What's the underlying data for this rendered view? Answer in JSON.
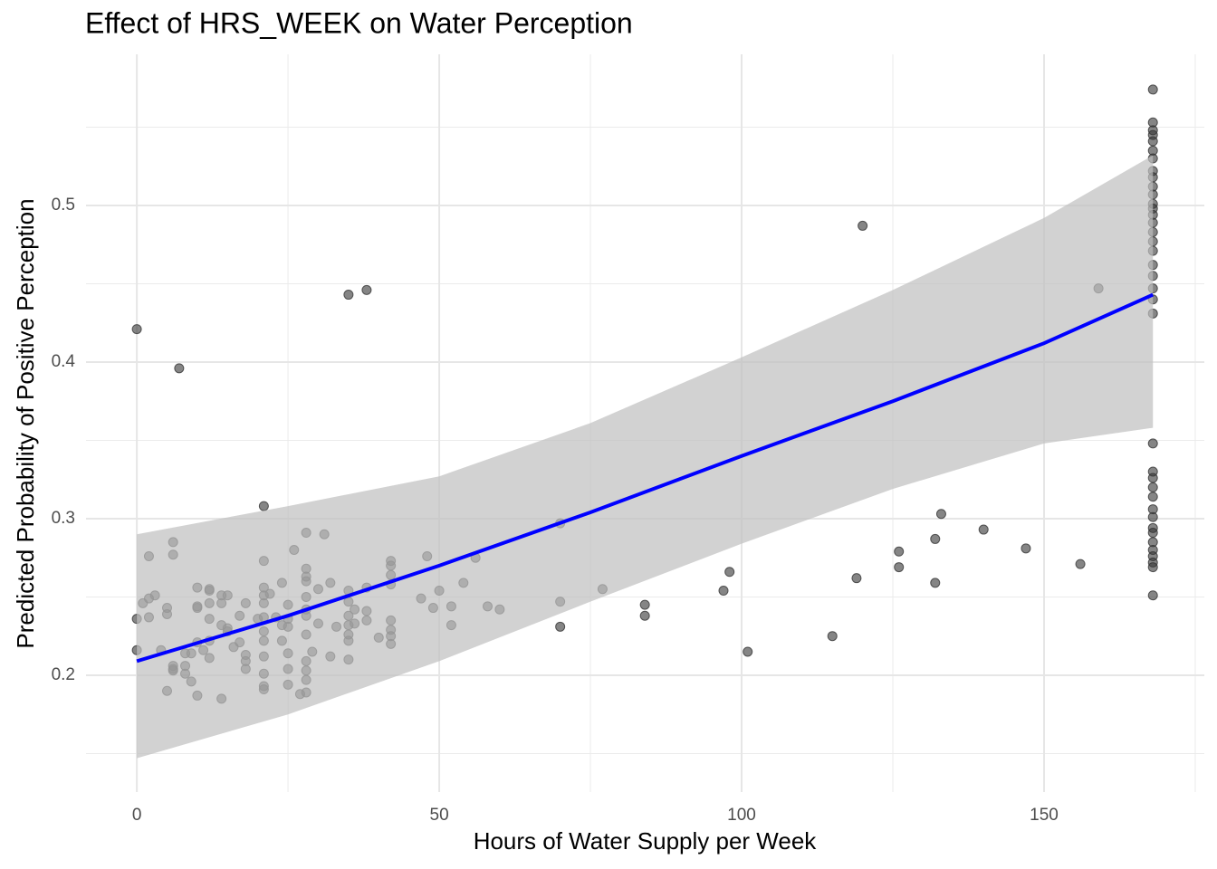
{
  "chart_data": {
    "type": "scatter",
    "title": "Effect of HRS_WEEK on Water Perception",
    "x_label": "Hours of Water Supply per Week",
    "y_label": "Predicted Probability of Positive Perception",
    "xlim": [
      -8.4,
      176.5
    ],
    "ylim": [
      0.1254,
      0.5965
    ],
    "xticks": [
      0,
      50,
      100,
      150
    ],
    "yticks": [
      0.2,
      0.3,
      0.4,
      0.5
    ],
    "minor_xticks": [
      25,
      75,
      125,
      175
    ],
    "minor_yticks": [
      0.15,
      0.25,
      0.35,
      0.45,
      0.55
    ],
    "grid": true,
    "band": {
      "color": "#bfbfbf",
      "x": [
        0,
        25,
        50,
        75,
        100,
        125,
        150,
        168
      ],
      "lower": [
        0.147,
        0.175,
        0.209,
        0.247,
        0.284,
        0.319,
        0.348,
        0.358
      ],
      "upper": [
        0.29,
        0.308,
        0.327,
        0.361,
        0.403,
        0.446,
        0.492,
        0.532
      ]
    },
    "fit": {
      "color": "#0000ff",
      "x": [
        0,
        25,
        50,
        75,
        100,
        125,
        150,
        168
      ],
      "values": [
        0.209,
        0.238,
        0.27,
        0.304,
        0.34,
        0.375,
        0.412,
        0.443
      ]
    },
    "points": {
      "color": "#333333",
      "x": [
        0,
        0,
        0,
        1,
        2,
        2,
        2,
        3,
        4,
        5,
        5,
        5,
        6,
        6,
        6,
        6,
        6,
        7,
        8,
        8,
        8,
        9,
        9,
        10,
        10,
        10,
        10,
        10,
        11,
        12,
        12,
        12,
        12,
        12,
        12,
        14,
        14,
        14,
        14,
        15,
        15,
        15,
        16,
        17,
        17,
        18,
        18,
        18,
        18,
        20,
        21,
        21,
        21,
        21,
        21,
        21,
        21,
        21,
        21,
        21,
        21,
        21,
        22,
        23,
        24,
        24,
        24,
        25,
        25,
        25,
        25,
        25,
        25,
        26,
        27,
        28,
        28,
        28,
        28,
        28,
        28,
        28,
        28,
        28,
        28,
        28,
        28,
        29,
        30,
        30,
        31,
        32,
        32,
        33,
        35,
        35,
        35,
        35,
        35,
        35,
        35,
        35,
        36,
        36,
        38,
        38,
        38,
        38,
        40,
        42,
        42,
        42,
        42,
        42,
        42,
        42,
        42,
        47,
        48,
        49,
        50,
        52,
        52,
        54,
        56,
        58,
        60,
        70,
        70,
        70,
        77,
        84,
        84,
        97,
        98,
        101,
        115,
        119,
        120,
        126,
        126,
        132,
        132,
        133,
        140,
        147,
        156,
        159,
        168,
        168,
        168,
        168,
        168,
        168,
        168,
        168,
        168,
        168,
        168,
        168,
        168,
        168,
        168,
        168,
        168,
        168,
        168,
        168,
        168,
        168,
        168,
        168,
        168,
        168,
        168,
        168,
        168,
        168,
        168,
        168,
        168,
        168,
        168,
        168,
        168,
        168
      ],
      "y": [
        0.421,
        0.236,
        0.216,
        0.246,
        0.237,
        0.276,
        0.249,
        0.251,
        0.216,
        0.243,
        0.239,
        0.19,
        0.285,
        0.277,
        0.206,
        0.203,
        0.204,
        0.396,
        0.214,
        0.206,
        0.201,
        0.196,
        0.214,
        0.243,
        0.256,
        0.244,
        0.221,
        0.187,
        0.216,
        0.255,
        0.246,
        0.254,
        0.211,
        0.222,
        0.236,
        0.251,
        0.246,
        0.232,
        0.185,
        0.23,
        0.228,
        0.251,
        0.218,
        0.221,
        0.238,
        0.246,
        0.213,
        0.209,
        0.204,
        0.236,
        0.308,
        0.273,
        0.256,
        0.251,
        0.246,
        0.237,
        0.228,
        0.222,
        0.212,
        0.201,
        0.193,
        0.191,
        0.252,
        0.237,
        0.259,
        0.232,
        0.222,
        0.245,
        0.236,
        0.231,
        0.214,
        0.204,
        0.194,
        0.28,
        0.188,
        0.25,
        0.26,
        0.291,
        0.268,
        0.263,
        0.242,
        0.238,
        0.226,
        0.209,
        0.203,
        0.197,
        0.189,
        0.215,
        0.255,
        0.233,
        0.29,
        0.212,
        0.259,
        0.231,
        0.443,
        0.254,
        0.247,
        0.238,
        0.232,
        0.226,
        0.222,
        0.21,
        0.242,
        0.233,
        0.446,
        0.256,
        0.241,
        0.235,
        0.224,
        0.273,
        0.27,
        0.264,
        0.258,
        0.235,
        0.229,
        0.225,
        0.22,
        0.249,
        0.276,
        0.243,
        0.254,
        0.244,
        0.232,
        0.259,
        0.275,
        0.244,
        0.242,
        0.297,
        0.247,
        0.231,
        0.255,
        0.245,
        0.238,
        0.254,
        0.266,
        0.215,
        0.225,
        0.262,
        0.487,
        0.279,
        0.269,
        0.287,
        0.259,
        0.303,
        0.293,
        0.281,
        0.271,
        0.447,
        0.574,
        0.553,
        0.548,
        0.545,
        0.541,
        0.535,
        0.53,
        0.522,
        0.518,
        0.512,
        0.507,
        0.501,
        0.498,
        0.494,
        0.489,
        0.483,
        0.477,
        0.471,
        0.462,
        0.455,
        0.447,
        0.44,
        0.431,
        0.348,
        0.33,
        0.326,
        0.32,
        0.314,
        0.306,
        0.301,
        0.294,
        0.291,
        0.285,
        0.28,
        0.276,
        0.272,
        0.269,
        0.251
      ]
    }
  }
}
